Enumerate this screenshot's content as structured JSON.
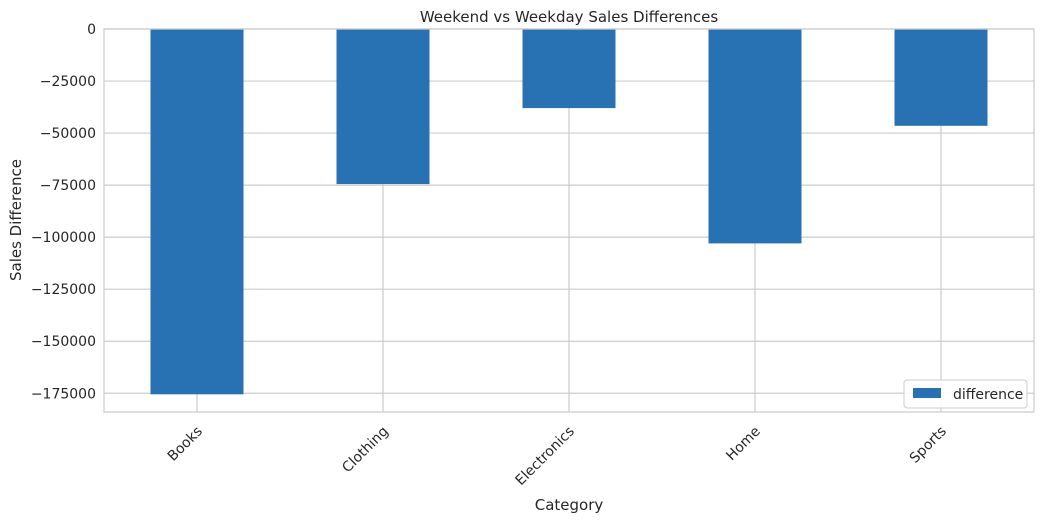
{
  "chart_data": {
    "type": "bar",
    "title": "Weekend vs Weekday Sales Differences",
    "xlabel": "Category",
    "ylabel": "Sales Difference",
    "categories": [
      "Books",
      "Clothing",
      "Electronics",
      "Home",
      "Sports"
    ],
    "series": [
      {
        "name": "difference",
        "values": [
          -175500,
          -74500,
          -38000,
          -103000,
          -46500
        ]
      }
    ],
    "ylim": [
      -184000,
      0
    ],
    "yticks": [
      0,
      -25000,
      -50000,
      -75000,
      -100000,
      -125000,
      -150000,
      -175000
    ],
    "ytick_labels": [
      "0",
      "−25000",
      "−50000",
      "−75000",
      "−100000",
      "−125000",
      "−150000",
      "−175000"
    ],
    "grid": true,
    "legend_position": "bottom-right",
    "colors": {
      "bar": "#2872b3",
      "grid": "#cccccc",
      "axis": "#cccccc",
      "text": "#262626"
    }
  }
}
